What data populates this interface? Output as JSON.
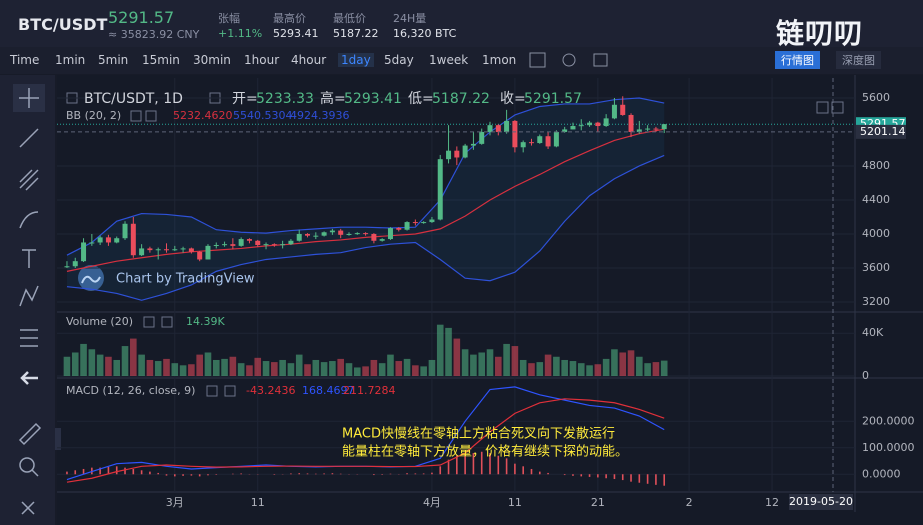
{
  "header": {
    "symbol": "BTC/USDT",
    "price": "5291.57",
    "cny": "≈ 35823.92 CNY",
    "stats": [
      {
        "label": "张幅",
        "value": "+1.11%"
      },
      {
        "label": "最高价",
        "value": "5293.41"
      },
      {
        "label": "最低价",
        "value": "5187.22"
      },
      {
        "label": "24H量",
        "value": "16,320 BTC"
      }
    ]
  },
  "logo": "链叨叨",
  "tabs": [
    "行情图",
    "深度图"
  ],
  "toolbar": {
    "items": [
      "Time",
      "1min",
      "5min",
      "15min",
      "30min",
      "1hour",
      "4hour",
      "1day",
      "5day",
      "1week",
      "1mon"
    ],
    "active": 7
  },
  "chart_data": {
    "type": "candlestick",
    "title": "BTC/USDT, 1D",
    "watermark": "Chart by TradingView",
    "legend": {
      "open_label": "开=",
      "open": 5233.33,
      "high_label": "高=",
      "high": 5293.41,
      "low_label": "低=",
      "low": 5187.22,
      "close_label": "收=",
      "close": 5291.57
    },
    "up_color": "#53b987",
    "down_color": "#eb4d5c",
    "open": [
      3610,
      3620,
      3680,
      3900,
      3900,
      3960,
      3900,
      3950,
      4120,
      3750,
      3830,
      3810,
      3820,
      3810,
      3820,
      3830,
      3790,
      3700,
      3860,
      3870,
      3880,
      3860,
      3940,
      3920,
      3870,
      3880,
      3870,
      3880,
      3920,
      4000,
      3980,
      3980,
      4020,
      4040,
      3990,
      4000,
      4010,
      4000,
      3920,
      3940,
      4070,
      4050,
      4140,
      4130,
      4140,
      4170,
      4880,
      4980,
      4900,
      5040,
      5060,
      5200,
      5280,
      5200,
      5330,
      5020,
      5080,
      5070,
      5150,
      5030,
      5200,
      5230,
      5270,
      5280,
      5310,
      5270,
      5360,
      5520,
      5400,
      5200,
      5230,
      5240
    ],
    "high": [
      3680,
      3720,
      3950,
      4000,
      3980,
      3990,
      3970,
      4150,
      4200,
      3880,
      3850,
      3840,
      3890,
      3860,
      3850,
      3840,
      3800,
      3880,
      3900,
      3910,
      3950,
      3960,
      3950,
      3930,
      3900,
      3890,
      3920,
      3940,
      4050,
      4010,
      4020,
      4030,
      4060,
      4060,
      4020,
      4020,
      4020,
      4010,
      3950,
      4080,
      4080,
      4150,
      4170,
      4150,
      4200,
      4930,
      5280,
      5030,
      5060,
      5200,
      5240,
      5320,
      5290,
      5460,
      5340,
      5100,
      5120,
      5170,
      5200,
      5220,
      5260,
      5310,
      5350,
      5330,
      5320,
      5410,
      5600,
      5620,
      5420,
      5330,
      5280,
      5260
    ],
    "low": [
      3600,
      3600,
      3670,
      3860,
      3870,
      3860,
      3890,
      3930,
      3720,
      3740,
      3780,
      3700,
      3780,
      3800,
      3780,
      3770,
      3680,
      3700,
      3830,
      3850,
      3820,
      3850,
      3890,
      3850,
      3820,
      3850,
      3830,
      3870,
      3910,
      3960,
      3940,
      3970,
      3990,
      3950,
      3980,
      3990,
      3980,
      3890,
      3910,
      3930,
      4030,
      4040,
      4100,
      4120,
      4130,
      4160,
      4830,
      4810,
      4890,
      4990,
      5050,
      5160,
      5160,
      5180,
      4960,
      4960,
      5040,
      5060,
      5000,
      5020,
      5190,
      5230,
      5220,
      5260,
      5200,
      5260,
      5350,
      5390,
      5140,
      5180,
      5210,
      5200
    ],
    "close": [
      3620,
      3680,
      3900,
      3900,
      3960,
      3900,
      3950,
      4120,
      3750,
      3830,
      3810,
      3820,
      3810,
      3820,
      3830,
      3790,
      3700,
      3860,
      3870,
      3880,
      3860,
      3940,
      3920,
      3870,
      3880,
      3870,
      3880,
      3920,
      4000,
      3980,
      3980,
      4020,
      4040,
      3990,
      4000,
      4010,
      4000,
      3920,
      3940,
      4070,
      4050,
      4140,
      4130,
      4140,
      4170,
      4880,
      4980,
      4900,
      5040,
      5060,
      5200,
      5280,
      5200,
      5330,
      5020,
      5080,
      5070,
      5150,
      5030,
      5200,
      5230,
      5270,
      5280,
      5310,
      5270,
      5360,
      5520,
      5400,
      5200,
      5230,
      5240,
      5233
    ],
    "ylim": [
      3082,
      5835
    ],
    "yticks": [
      3200,
      3600,
      4000,
      4400,
      4800,
      5600
    ],
    "x_labels": [
      "3月",
      "11",
      "4月",
      "11",
      "21",
      "2",
      "12"
    ],
    "crosshair": {
      "price": 5201.14,
      "date": "2019-05-20"
    },
    "line_index": [
      0,
      3,
      6,
      9,
      12,
      15,
      18,
      21,
      24,
      27,
      30,
      33,
      36,
      39,
      42,
      45,
      48,
      51,
      54,
      57,
      60,
      63,
      66,
      69,
      72
    ],
    "bb": {
      "name": "BB (20, 2)",
      "mid_color": "#d6303f",
      "band_color": "#2f4fd8",
      "legend": {
        "mid": {
          "value": 5232.462,
          "label": "5232.4620"
        },
        "upper": 5540.5304,
        "lower": 4924.3936
      },
      "mid": [
        3560,
        3620,
        3680,
        3720,
        3760,
        3790,
        3810,
        3830,
        3860,
        3880,
        3910,
        3930,
        3960,
        3980,
        4000,
        4060,
        4210,
        4400,
        4560,
        4700,
        4850,
        4980,
        5100,
        5180
      ],
      "upper": [
        3750,
        3900,
        4150,
        4240,
        4230,
        4200,
        4050,
        4020,
        4010,
        4040,
        4060,
        4080,
        4080,
        4070,
        4080,
        4400,
        4950,
        5200,
        5400,
        5500,
        5530,
        5530,
        5580,
        5600
      ],
      "lower": [
        3380,
        3350,
        3300,
        3220,
        3300,
        3400,
        3560,
        3640,
        3700,
        3730,
        3760,
        3780,
        3840,
        3880,
        3900,
        3700,
        3480,
        3450,
        3550,
        3800,
        4150,
        4450,
        4650,
        4800
      ]
    },
    "volume": {
      "name": "Volume (20)",
      "legend": {
        "value": 14390,
        "label": "14.39K"
      },
      "ylim": [
        0,
        58000
      ],
      "yticks": [
        0,
        {
          "value": 40000,
          "label": "40K"
        }
      ],
      "values": [
        18000,
        22000,
        30000,
        25000,
        20000,
        18000,
        15000,
        28000,
        35000,
        20000,
        15000,
        14000,
        16000,
        12000,
        10000,
        11000,
        20000,
        22000,
        15000,
        16000,
        18000,
        12000,
        10000,
        17000,
        14000,
        13000,
        15000,
        12000,
        20000,
        11000,
        15000,
        13000,
        14000,
        16000,
        12000,
        8000,
        9000,
        15000,
        12000,
        20000,
        14000,
        16000,
        10000,
        9000,
        15000,
        48000,
        45000,
        35000,
        25000,
        20000,
        22000,
        25000,
        18000,
        30000,
        28000,
        15000,
        12000,
        13000,
        20000,
        18000,
        15000,
        14000,
        12000,
        10000,
        11000,
        16000,
        25000,
        22000,
        24000,
        18000,
        12000,
        13000
      ]
    },
    "macd": {
      "name": "MACD (12, 26, close, 9)",
      "macd_color": "#2e54ff",
      "signal_color": "#e0303a",
      "hist_color": "#e0505a",
      "legend": {
        "hist": -43.2436,
        "macd": 168.4697,
        "signal": 211.7284
      },
      "ylim": [
        -67,
        356
      ],
      "yticks": [
        {
          "value": 0,
          "label": "0.0000"
        },
        {
          "value": 100,
          "label": "100.0000"
        },
        {
          "value": 200,
          "label": "200.0000"
        }
      ],
      "histogram": [
        10,
        15,
        20,
        25,
        25,
        28,
        30,
        25,
        20,
        15,
        10,
        5,
        -5,
        -8,
        -6,
        -5,
        -8,
        -4,
        -2,
        0,
        2,
        3,
        1,
        -1,
        0,
        -2,
        1,
        3,
        4,
        3,
        2,
        3,
        4,
        2,
        1,
        1,
        0,
        -3,
        -2,
        2,
        1,
        4,
        3,
        3,
        6,
        30,
        55,
        70,
        75,
        80,
        85,
        80,
        70,
        60,
        40,
        30,
        20,
        10,
        5,
        0,
        -3,
        -6,
        -8,
        -10,
        -12,
        -15,
        -18,
        -22,
        -28,
        -32,
        -36,
        -40
      ],
      "macd": [
        -20,
        10,
        40,
        45,
        30,
        20,
        25,
        30,
        35,
        30,
        28,
        30,
        30,
        28,
        30,
        60,
        200,
        320,
        330,
        300,
        280,
        260,
        250,
        220
      ],
      "signal": [
        -30,
        -15,
        10,
        30,
        35,
        30,
        27,
        28,
        30,
        31,
        30,
        30,
        30,
        29,
        29,
        35,
        80,
        160,
        230,
        270,
        285,
        280,
        270,
        245
      ]
    },
    "annotation": [
      "MACD快慢线在零轴上方粘合死叉向下发散运行",
      "能量柱在零轴下方放量，价格有继续下探的动能。"
    ]
  }
}
